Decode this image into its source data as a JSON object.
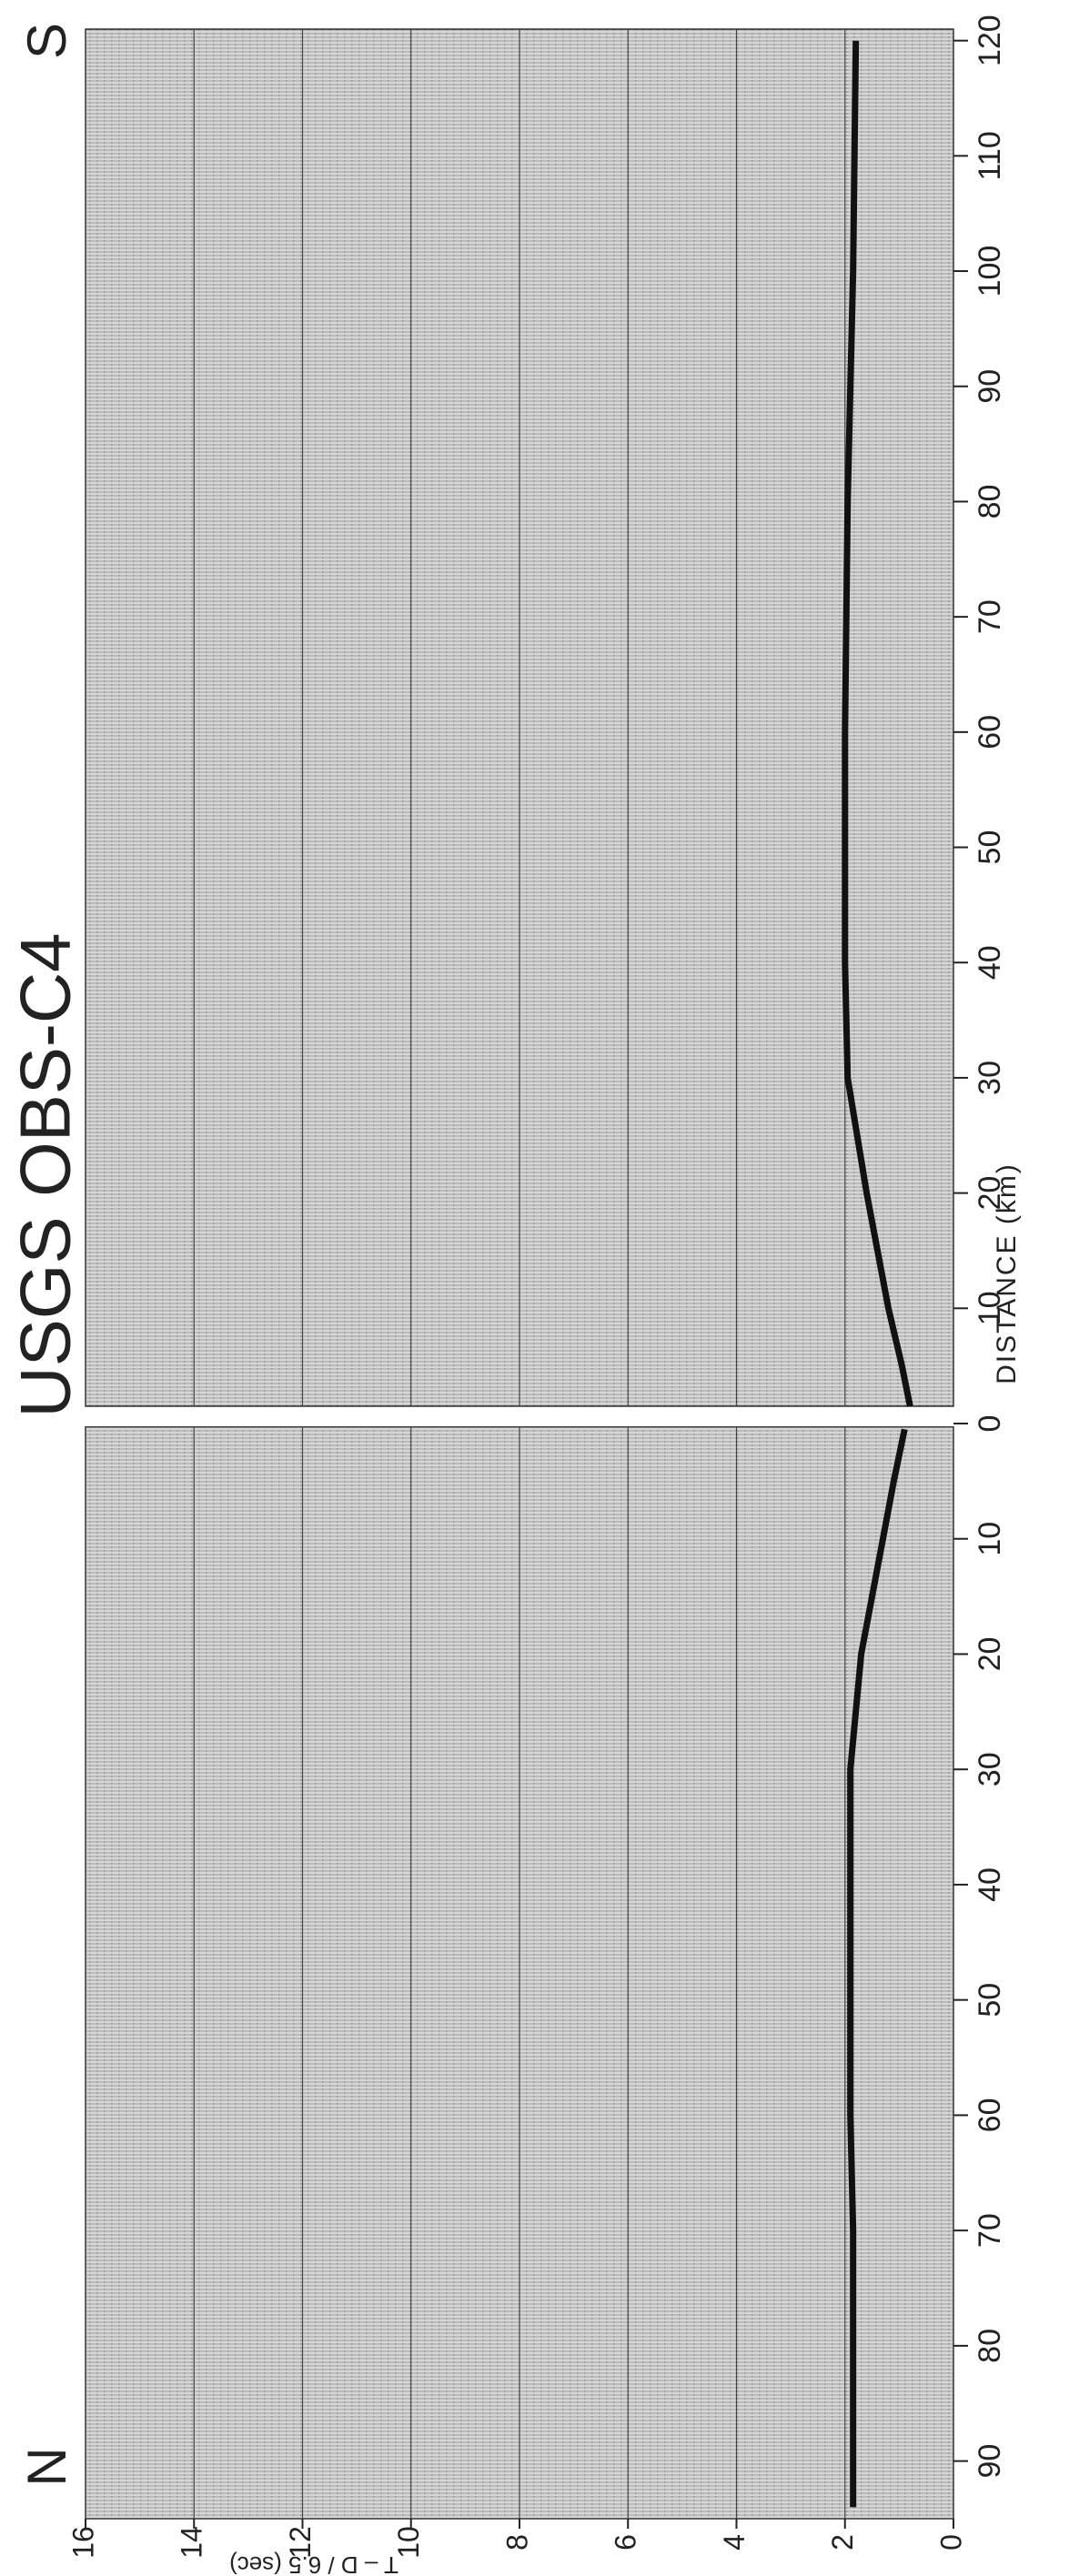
{
  "chart_data": [
    {
      "type": "line",
      "direction_label": "N",
      "ylabel": "T – D / 6.5 (sec)",
      "x": [
        0.5,
        5,
        10,
        20,
        30,
        40,
        50,
        60,
        70,
        80,
        90,
        94
      ],
      "values": [
        0.9,
        1.1,
        1.3,
        1.7,
        1.9,
        1.9,
        1.9,
        1.9,
        1.85,
        1.85,
        1.85,
        1.85
      ],
      "xlim": [
        0,
        95
      ],
      "xticks": [
        10,
        20,
        30,
        40,
        50,
        60,
        70,
        80,
        90
      ],
      "ylim": [
        0,
        16
      ],
      "yticks": [
        0,
        2,
        4,
        6,
        8,
        10,
        12,
        14,
        16
      ],
      "grid": true,
      "color": "#111111"
    },
    {
      "type": "line",
      "title": "USGS OBS-C4",
      "direction_label": "S",
      "xlabel": "DISTANCE (km)",
      "x": [
        1.5,
        5,
        10,
        20,
        30,
        40,
        60,
        80,
        100,
        120
      ],
      "values": [
        0.8,
        0.95,
        1.2,
        1.6,
        1.95,
        2.0,
        2.0,
        1.95,
        1.85,
        1.8
      ],
      "xlim": [
        0,
        121
      ],
      "xticks": [
        0,
        10,
        20,
        30,
        40,
        50,
        60,
        70,
        80,
        90,
        100,
        110,
        120
      ],
      "ylim": [
        0,
        16
      ],
      "grid": true,
      "color": "#111111"
    }
  ]
}
